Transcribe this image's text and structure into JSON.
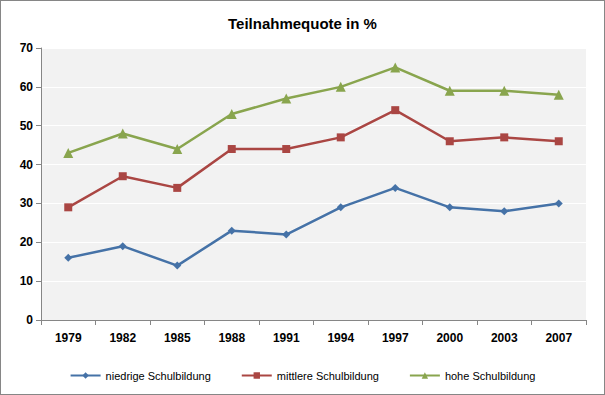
{
  "chart_data": {
    "type": "line",
    "title": "Teilnahmequote in %",
    "categories": [
      "1979",
      "1982",
      "1985",
      "1988",
      "1991",
      "1994",
      "1997",
      "2000",
      "2003",
      "2007"
    ],
    "series": [
      {
        "name": "niedrige Schulbildung",
        "color": "#4572A7",
        "marker": "diamond",
        "values": [
          16,
          19,
          14,
          23,
          22,
          29,
          34,
          29,
          28,
          30
        ]
      },
      {
        "name": "mittlere Schulbildung",
        "color": "#AA4643",
        "marker": "square",
        "values": [
          29,
          37,
          34,
          44,
          44,
          47,
          54,
          46,
          47,
          46
        ]
      },
      {
        "name": "hohe Schulbildung",
        "color": "#89A54E",
        "marker": "triangle",
        "values": [
          43,
          48,
          44,
          53,
          57,
          60,
          65,
          59,
          59,
          58
        ]
      }
    ],
    "ylim": [
      0,
      70
    ],
    "yticks": [
      0,
      10,
      20,
      30,
      40,
      50,
      60,
      70
    ],
    "grid": true,
    "legend": "bottom"
  }
}
